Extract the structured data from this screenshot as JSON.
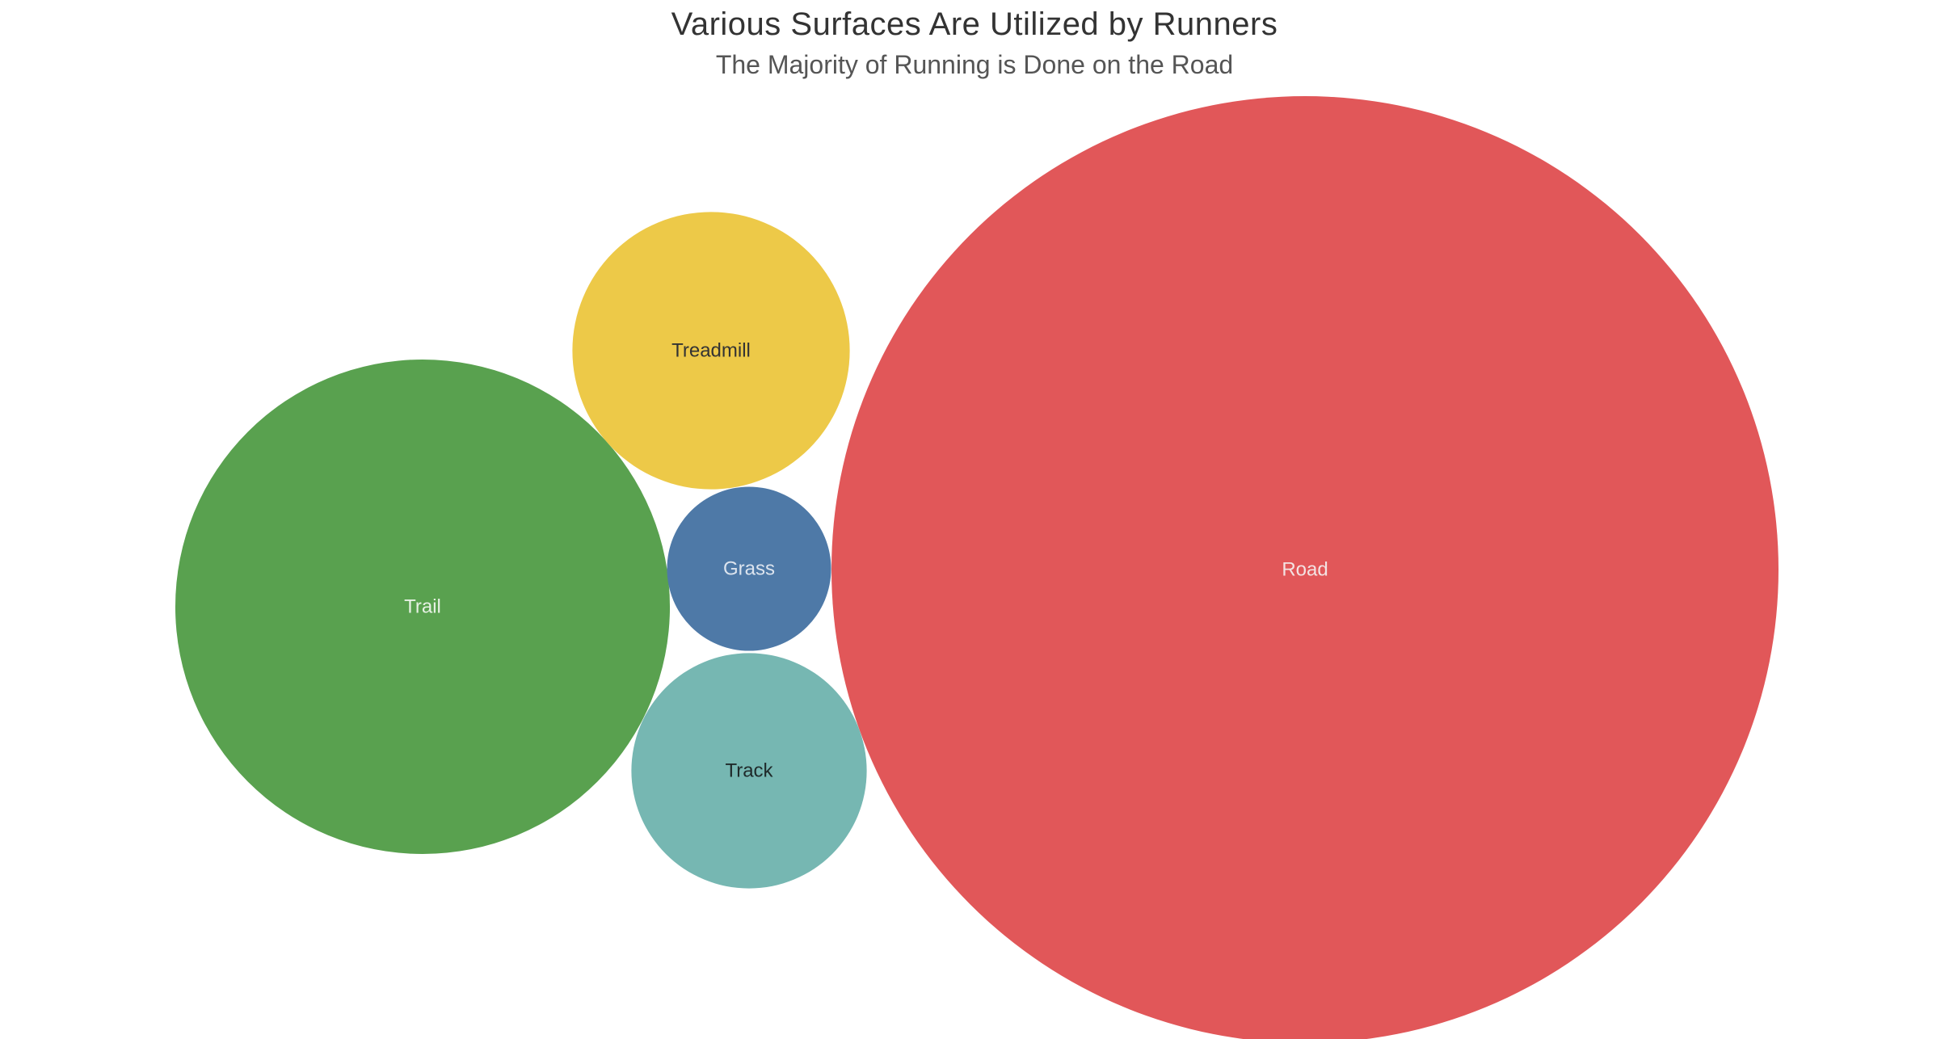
{
  "chart_data": {
    "type": "bubble",
    "title": "Various Surfaces Are Utilized by Runners",
    "subtitle": "The Majority of Running is Done on the Road",
    "bubbles": [
      {
        "label": "Road",
        "value": 58.3,
        "color": "#E15759",
        "text_color": "#F3E3E3"
      },
      {
        "label": "Trail",
        "value": 15.9,
        "color": "#59A14F",
        "text_color": "#E7F1E4"
      },
      {
        "label": "Treadmill",
        "value": 5.0,
        "color": "#EDC948",
        "text_color": "#333333"
      },
      {
        "label": "Track",
        "value": 3.6,
        "color": "#76B7B2",
        "text_color": "#1F2A2A"
      },
      {
        "label": "Grass",
        "value": 1.75,
        "color": "#4E79A7",
        "text_color": "#DCE4EE"
      }
    ]
  }
}
